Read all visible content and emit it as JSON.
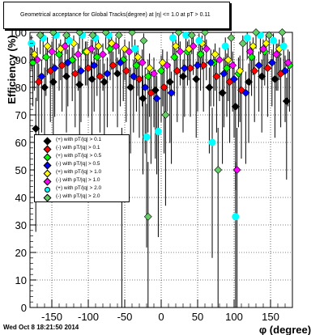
{
  "title": "Geometrical acceptance for Global Tracks(degree) at |η| <= 1.0 at pT > 0.11",
  "footer": "Wed Oct  8 18:21:50 2014",
  "chart_data": {
    "type": "scatter",
    "xlabel": "φ (degree)",
    "ylabel": "Efficiency (%)",
    "xlim": [
      -180,
      180
    ],
    "ylim": [
      0,
      100
    ],
    "xticks": [
      "-150",
      "-100",
      "-50",
      "0",
      "50",
      "100",
      "150"
    ],
    "yticks": [
      "0",
      "10",
      "20",
      "30",
      "40",
      "50",
      "60",
      "70",
      "80",
      "90",
      "100"
    ],
    "grid": true,
    "legend_position": "left-middle",
    "series": [
      {
        "name": "(+) with pT/|q| > 0.1",
        "color": "#000000",
        "marker": "diamond",
        "x": [
          -172,
          -160,
          -148,
          -130,
          -112,
          -95,
          -78,
          -60,
          -42,
          -25,
          -8,
          12,
          30,
          48,
          66,
          84,
          102,
          120,
          138,
          156,
          172
        ],
        "y": [
          65,
          80,
          82,
          84,
          81,
          83,
          82,
          85,
          80,
          76,
          79,
          82,
          84,
          83,
          80,
          78,
          73,
          82,
          84,
          83,
          75
        ]
      },
      {
        "name": "(-) with pT/|q| > 0.1",
        "color": "#ff0000",
        "marker": "diamond",
        "x": [
          -168,
          -152,
          -136,
          -118,
          -100,
          -84,
          -66,
          -48,
          -30,
          -14,
          4,
          22,
          40,
          58,
          76,
          94,
          110,
          128,
          146,
          164
        ],
        "y": [
          82,
          86,
          88,
          85,
          87,
          84,
          88,
          86,
          83,
          78,
          80,
          86,
          87,
          88,
          84,
          82,
          79,
          86,
          87,
          85
        ]
      },
      {
        "name": "(+) with pT/|q| > 0.5",
        "color": "#00ff00",
        "marker": "diamond",
        "x": [
          -176,
          -158,
          -140,
          -122,
          -104,
          -88,
          -70,
          -52,
          -34,
          -18,
          0,
          18,
          36,
          54,
          72,
          90,
          106,
          124,
          142,
          160,
          176
        ],
        "y": [
          89,
          91,
          92,
          90,
          93,
          91,
          94,
          90,
          88,
          84,
          86,
          91,
          93,
          92,
          89,
          87,
          85,
          91,
          93,
          92,
          88
        ]
      },
      {
        "name": "(-) with pT/|q| > 0.5",
        "color": "#0000ff",
        "marker": "diamond",
        "x": [
          -164,
          -146,
          -128,
          -110,
          -92,
          -74,
          -56,
          -38,
          -22,
          -6,
          14,
          32,
          50,
          68,
          86,
          100,
          116,
          134,
          152,
          170
        ],
        "y": [
          84,
          87,
          89,
          86,
          88,
          85,
          89,
          84,
          80,
          76,
          78,
          87,
          88,
          89,
          85,
          83,
          78,
          88,
          89,
          86
        ]
      },
      {
        "name": "(+) with pT/|q| > 1.0",
        "color": "#ffff00",
        "marker": "diamond",
        "x": [
          -174,
          -156,
          -138,
          -120,
          -102,
          -86,
          -68,
          -50,
          -32,
          -16,
          2,
          20,
          38,
          56,
          74,
          92,
          108,
          126,
          144,
          162
        ],
        "y": [
          92,
          95,
          94,
          96,
          93,
          95,
          96,
          94,
          91,
          87,
          89,
          95,
          94,
          96,
          92,
          90,
          86,
          95,
          96,
          94
        ]
      },
      {
        "name": "(-) with pT/|q| > 1.0",
        "color": "#ff00ff",
        "marker": "diamond",
        "x": [
          -170,
          -150,
          -132,
          -114,
          -96,
          -80,
          -62,
          -44,
          -26,
          -10,
          8,
          26,
          44,
          62,
          80,
          98,
          104,
          122,
          140,
          158,
          174
        ],
        "y": [
          90,
          93,
          95,
          92,
          94,
          92,
          95,
          93,
          89,
          85,
          88,
          93,
          95,
          94,
          90,
          88,
          50,
          93,
          94,
          92,
          89
        ]
      },
      {
        "name": "(+) with pT/|q| > 2.0",
        "color": "#00ffff",
        "marker": "circle",
        "x": [
          -178,
          -162,
          -144,
          -126,
          -108,
          -90,
          -72,
          -54,
          -36,
          -20,
          -4,
          16,
          34,
          52,
          70,
          88,
          102,
          118,
          136,
          154,
          168
        ],
        "y": [
          96,
          98,
          99,
          97,
          99,
          98,
          99,
          50,
          94,
          62,
          64,
          98,
          99,
          97,
          60,
          95,
          33,
          98,
          99,
          97,
          95
        ]
      },
      {
        "name": "(-) with pT/|q| > 2.0",
        "color": "#66cc66",
        "marker": "diamond",
        "x": [
          -166,
          -148,
          -130,
          -112,
          -94,
          -76,
          -58,
          -40,
          -24,
          -18,
          6,
          24,
          42,
          60,
          78,
          96,
          112,
          130,
          148,
          166
        ],
        "y": [
          99,
          100,
          99,
          100,
          99,
          100,
          99,
          100,
          97,
          33,
          70,
          100,
          99,
          100,
          50,
          98,
          96,
          100,
          99,
          100
        ]
      }
    ]
  }
}
